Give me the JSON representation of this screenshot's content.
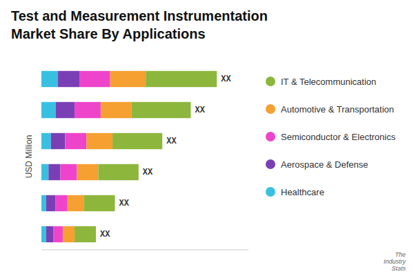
{
  "chart_data": {
    "type": "bar",
    "orientation": "horizontal",
    "stacked": true,
    "title": "Test and Measurement Instrumentation",
    "subtitle": "Market Share By Applications",
    "ylabel": "USD Million",
    "categories": [
      null,
      null,
      null,
      null,
      null,
      null
    ],
    "series": [
      {
        "name": "Healthcare",
        "color": "#39c0e0",
        "values": [
          7,
          6,
          4,
          3,
          2,
          2
        ]
      },
      {
        "name": "Aerospace & Defense",
        "color": "#7b3fb5",
        "values": [
          9,
          8,
          6,
          5,
          4,
          3
        ]
      },
      {
        "name": "Semiconductor & Electronics",
        "color": "#ee44cc",
        "values": [
          13,
          11,
          9,
          7,
          5,
          4
        ]
      },
      {
        "name": "Automotive & Transportation",
        "color": "#f5a030",
        "values": [
          15,
          13,
          11,
          9,
          7,
          5
        ]
      },
      {
        "name": "IT & Telecommunication",
        "color": "#8db63c",
        "values": [
          30,
          25,
          21,
          17,
          13,
          9
        ]
      }
    ],
    "xlim": [
      0,
      87.32
    ],
    "tick_labels": false,
    "grid": false,
    "legend": "right",
    "annotations": [
      "XX",
      "XX",
      "XX",
      "XX",
      "XX",
      "XX"
    ],
    "source": "The\nIndustry\nStats"
  }
}
